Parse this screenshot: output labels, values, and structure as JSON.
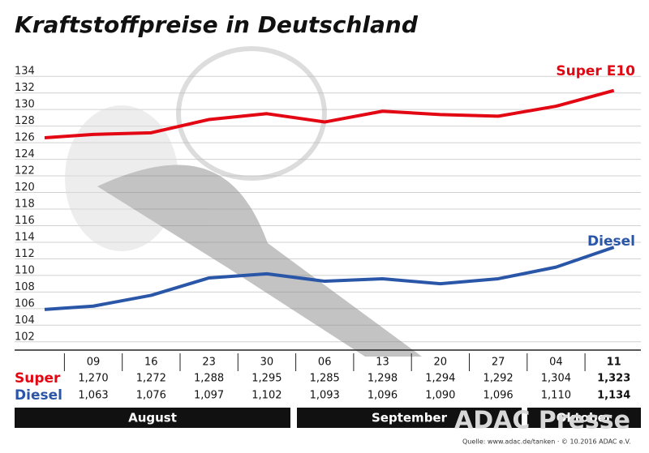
{
  "chart_data": {
    "type": "line",
    "title": "Kraftstoffpreise in Deutschland",
    "categories": [
      null,
      "09",
      "16",
      "23",
      "30",
      "06",
      "13",
      "20",
      "27",
      "04",
      "11"
    ],
    "months": [
      "August",
      "September",
      "Oktober"
    ],
    "series": [
      {
        "name": "Super E10",
        "row_label": "Super",
        "color": "#e30613",
        "values": [
          126.6,
          127.0,
          127.2,
          128.8,
          129.5,
          128.5,
          129.8,
          129.4,
          129.2,
          130.4,
          132.3
        ],
        "value_labels": [
          null,
          "1,270",
          "1,272",
          "1,288",
          "1,295",
          "1,285",
          "1,298",
          "1,294",
          "1,292",
          "1,304",
          "1,323"
        ]
      },
      {
        "name": "Diesel",
        "row_label": "Diesel",
        "color": "#2a56a8",
        "values": [
          105.9,
          106.3,
          107.6,
          109.7,
          110.2,
          109.3,
          109.6,
          109.0,
          109.6,
          111.0,
          113.4
        ],
        "value_labels": [
          null,
          "1,063",
          "1,076",
          "1,097",
          "1,102",
          "1,093",
          "1,096",
          "1,090",
          "1,096",
          "1,110",
          "1,134"
        ]
      }
    ],
    "ylim": [
      101,
      135
    ],
    "yticks": [
      102,
      104,
      106,
      108,
      110,
      112,
      114,
      116,
      118,
      120,
      122,
      124,
      126,
      128,
      130,
      132,
      134
    ],
    "grid": true,
    "watermark": "ADAC Presse",
    "source": "Quelle: www.adac.de/tanken · © 10.2016 ADAC e.V."
  }
}
